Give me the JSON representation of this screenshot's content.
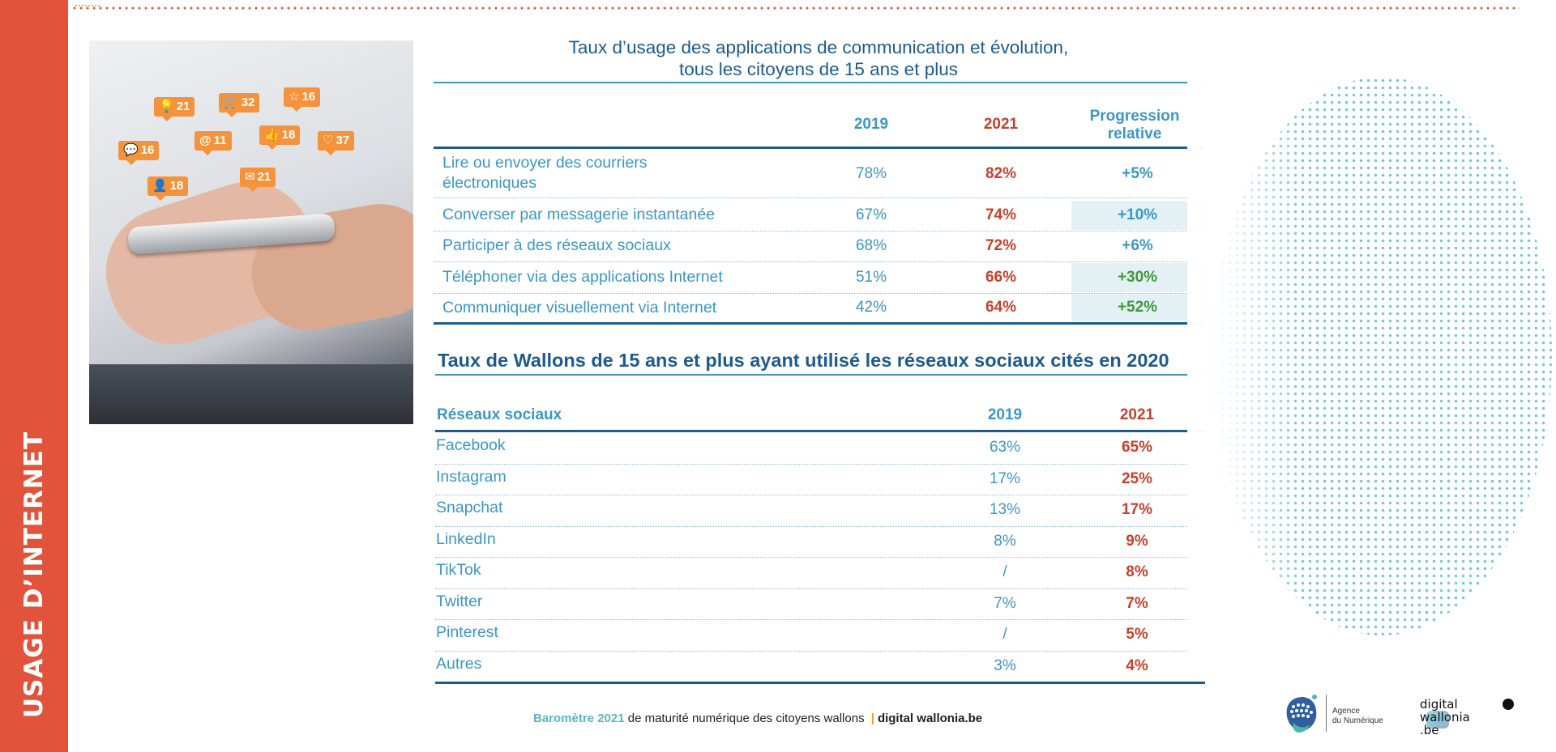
{
  "sidebar": {
    "label": "USAGE D’INTERNET"
  },
  "photo": {
    "bubbles": [
      {
        "icon": "lightbulb-icon",
        "glyph": "💡",
        "value": "21"
      },
      {
        "icon": "cart-icon",
        "glyph": "🛒",
        "value": "32"
      },
      {
        "icon": "star-icon",
        "glyph": "☆",
        "value": "16"
      },
      {
        "icon": "chat-icon",
        "glyph": "💬",
        "value": "16"
      },
      {
        "icon": "at-icon",
        "glyph": "@",
        "value": "11"
      },
      {
        "icon": "like-icon",
        "glyph": "👍",
        "value": "18"
      },
      {
        "icon": "heart-icon",
        "glyph": "♡",
        "value": "37"
      },
      {
        "icon": "user-icon",
        "glyph": "👤",
        "value": "18"
      },
      {
        "icon": "mail-icon",
        "glyph": "✉",
        "value": "21"
      }
    ]
  },
  "table1": {
    "title_line1": "Taux d’usage des applications de communication et évolution,",
    "title_line2": "tous les citoyens de 15 ans et plus",
    "col_2019": "2019",
    "col_2021": "2021",
    "col_prog_line1": "Progression",
    "col_prog_line2": "relative",
    "rows": [
      {
        "label_line1": "Lire ou envoyer des courriers",
        "label_line2": "électroniques",
        "v2019": "78%",
        "v2021": "82%",
        "prog": "+5%",
        "prog_color": "blue",
        "highlight": false
      },
      {
        "label_line1": "Converser par messagerie instantanée",
        "label_line2": "",
        "v2019": "67%",
        "v2021": "74%",
        "prog": "+10%",
        "prog_color": "blue",
        "highlight": true
      },
      {
        "label_line1": "Participer à des réseaux sociaux",
        "label_line2": "",
        "v2019": "68%",
        "v2021": "72%",
        "prog": "+6%",
        "prog_color": "blue",
        "highlight": false
      },
      {
        "label_line1": "Téléphoner via des applications Internet",
        "label_line2": "",
        "v2019": "51%",
        "v2021": "66%",
        "prog": "+30%",
        "prog_color": "green",
        "highlight": true
      },
      {
        "label_line1": "Communiquer visuellement via Internet",
        "label_line2": "",
        "v2019": "42%",
        "v2021": "64%",
        "prog": "+52%",
        "prog_color": "green",
        "highlight": true
      }
    ]
  },
  "table2": {
    "title": "Taux de Wallons de 15 ans et plus ayant utilisé les réseaux sociaux cités en 2020",
    "col_label": "Réseaux sociaux",
    "col_2019": "2019",
    "col_2021": "2021",
    "rows": [
      {
        "name": "Facebook",
        "v2019": "63%",
        "v2021": "65%"
      },
      {
        "name": "Instagram",
        "v2019": "17%",
        "v2021": "25%"
      },
      {
        "name": "Snapchat",
        "v2019": "13%",
        "v2021": "17%"
      },
      {
        "name": "LinkedIn",
        "v2019": "8%",
        "v2021": "9%"
      },
      {
        "name": "TikTok",
        "v2019": "/",
        "v2021": "8%"
      },
      {
        "name": "Twitter",
        "v2019": "7%",
        "v2021": "7%"
      },
      {
        "name": "Pinterest",
        "v2019": "/",
        "v2021": "5%"
      },
      {
        "name": "Autres",
        "v2019": "3%",
        "v2021": "4%"
      }
    ]
  },
  "footer": {
    "part_a": "Baromètre 2021",
    "part_b": " de maturité numérique des citoyens wallons ",
    "separator": "|",
    "part_c": "digital wallonia.be"
  },
  "logos": {
    "agence_line1": "Agence",
    "agence_line2": "du Numérique",
    "dw_line1": "digital",
    "dw_line2": "wallonia",
    "dw_line3": ".be"
  },
  "colors": {
    "accent_red": "#e2533b",
    "blue": "#3a97c7",
    "navy": "#1d5b8e",
    "green": "#3c9a3c",
    "bubble_orange": "#f4933c",
    "dot_teal": "#79cbc7"
  }
}
